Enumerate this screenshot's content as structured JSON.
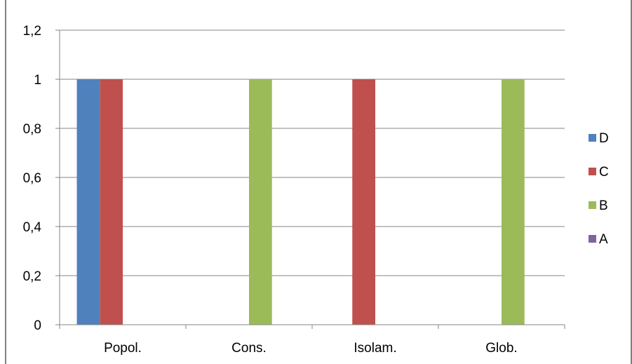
{
  "chart_data": {
    "type": "bar",
    "categories": [
      "Popol.",
      "Cons.",
      "Isolam.",
      "Glob."
    ],
    "series": [
      {
        "name": "D",
        "values": [
          1,
          0,
          0,
          0
        ],
        "color": "#4F81BD"
      },
      {
        "name": "C",
        "values": [
          1,
          0,
          1,
          0
        ],
        "color": "#C0504D"
      },
      {
        "name": "B",
        "values": [
          0,
          1,
          0,
          1
        ],
        "color": "#9BBB59"
      },
      {
        "name": "A",
        "values": [
          0,
          0,
          0,
          0
        ],
        "color": "#8064A2"
      }
    ],
    "legend_order": [
      "D",
      "C",
      "B",
      "A"
    ],
    "yticks": [
      "0",
      "0,2",
      "0,4",
      "0,6",
      "0,8",
      "1",
      "1,2"
    ],
    "ylim": [
      0,
      1.2
    ],
    "ystep": 0.2,
    "grid": true,
    "legend_position": "right",
    "title": "",
    "xlabel": "",
    "ylabel": ""
  }
}
